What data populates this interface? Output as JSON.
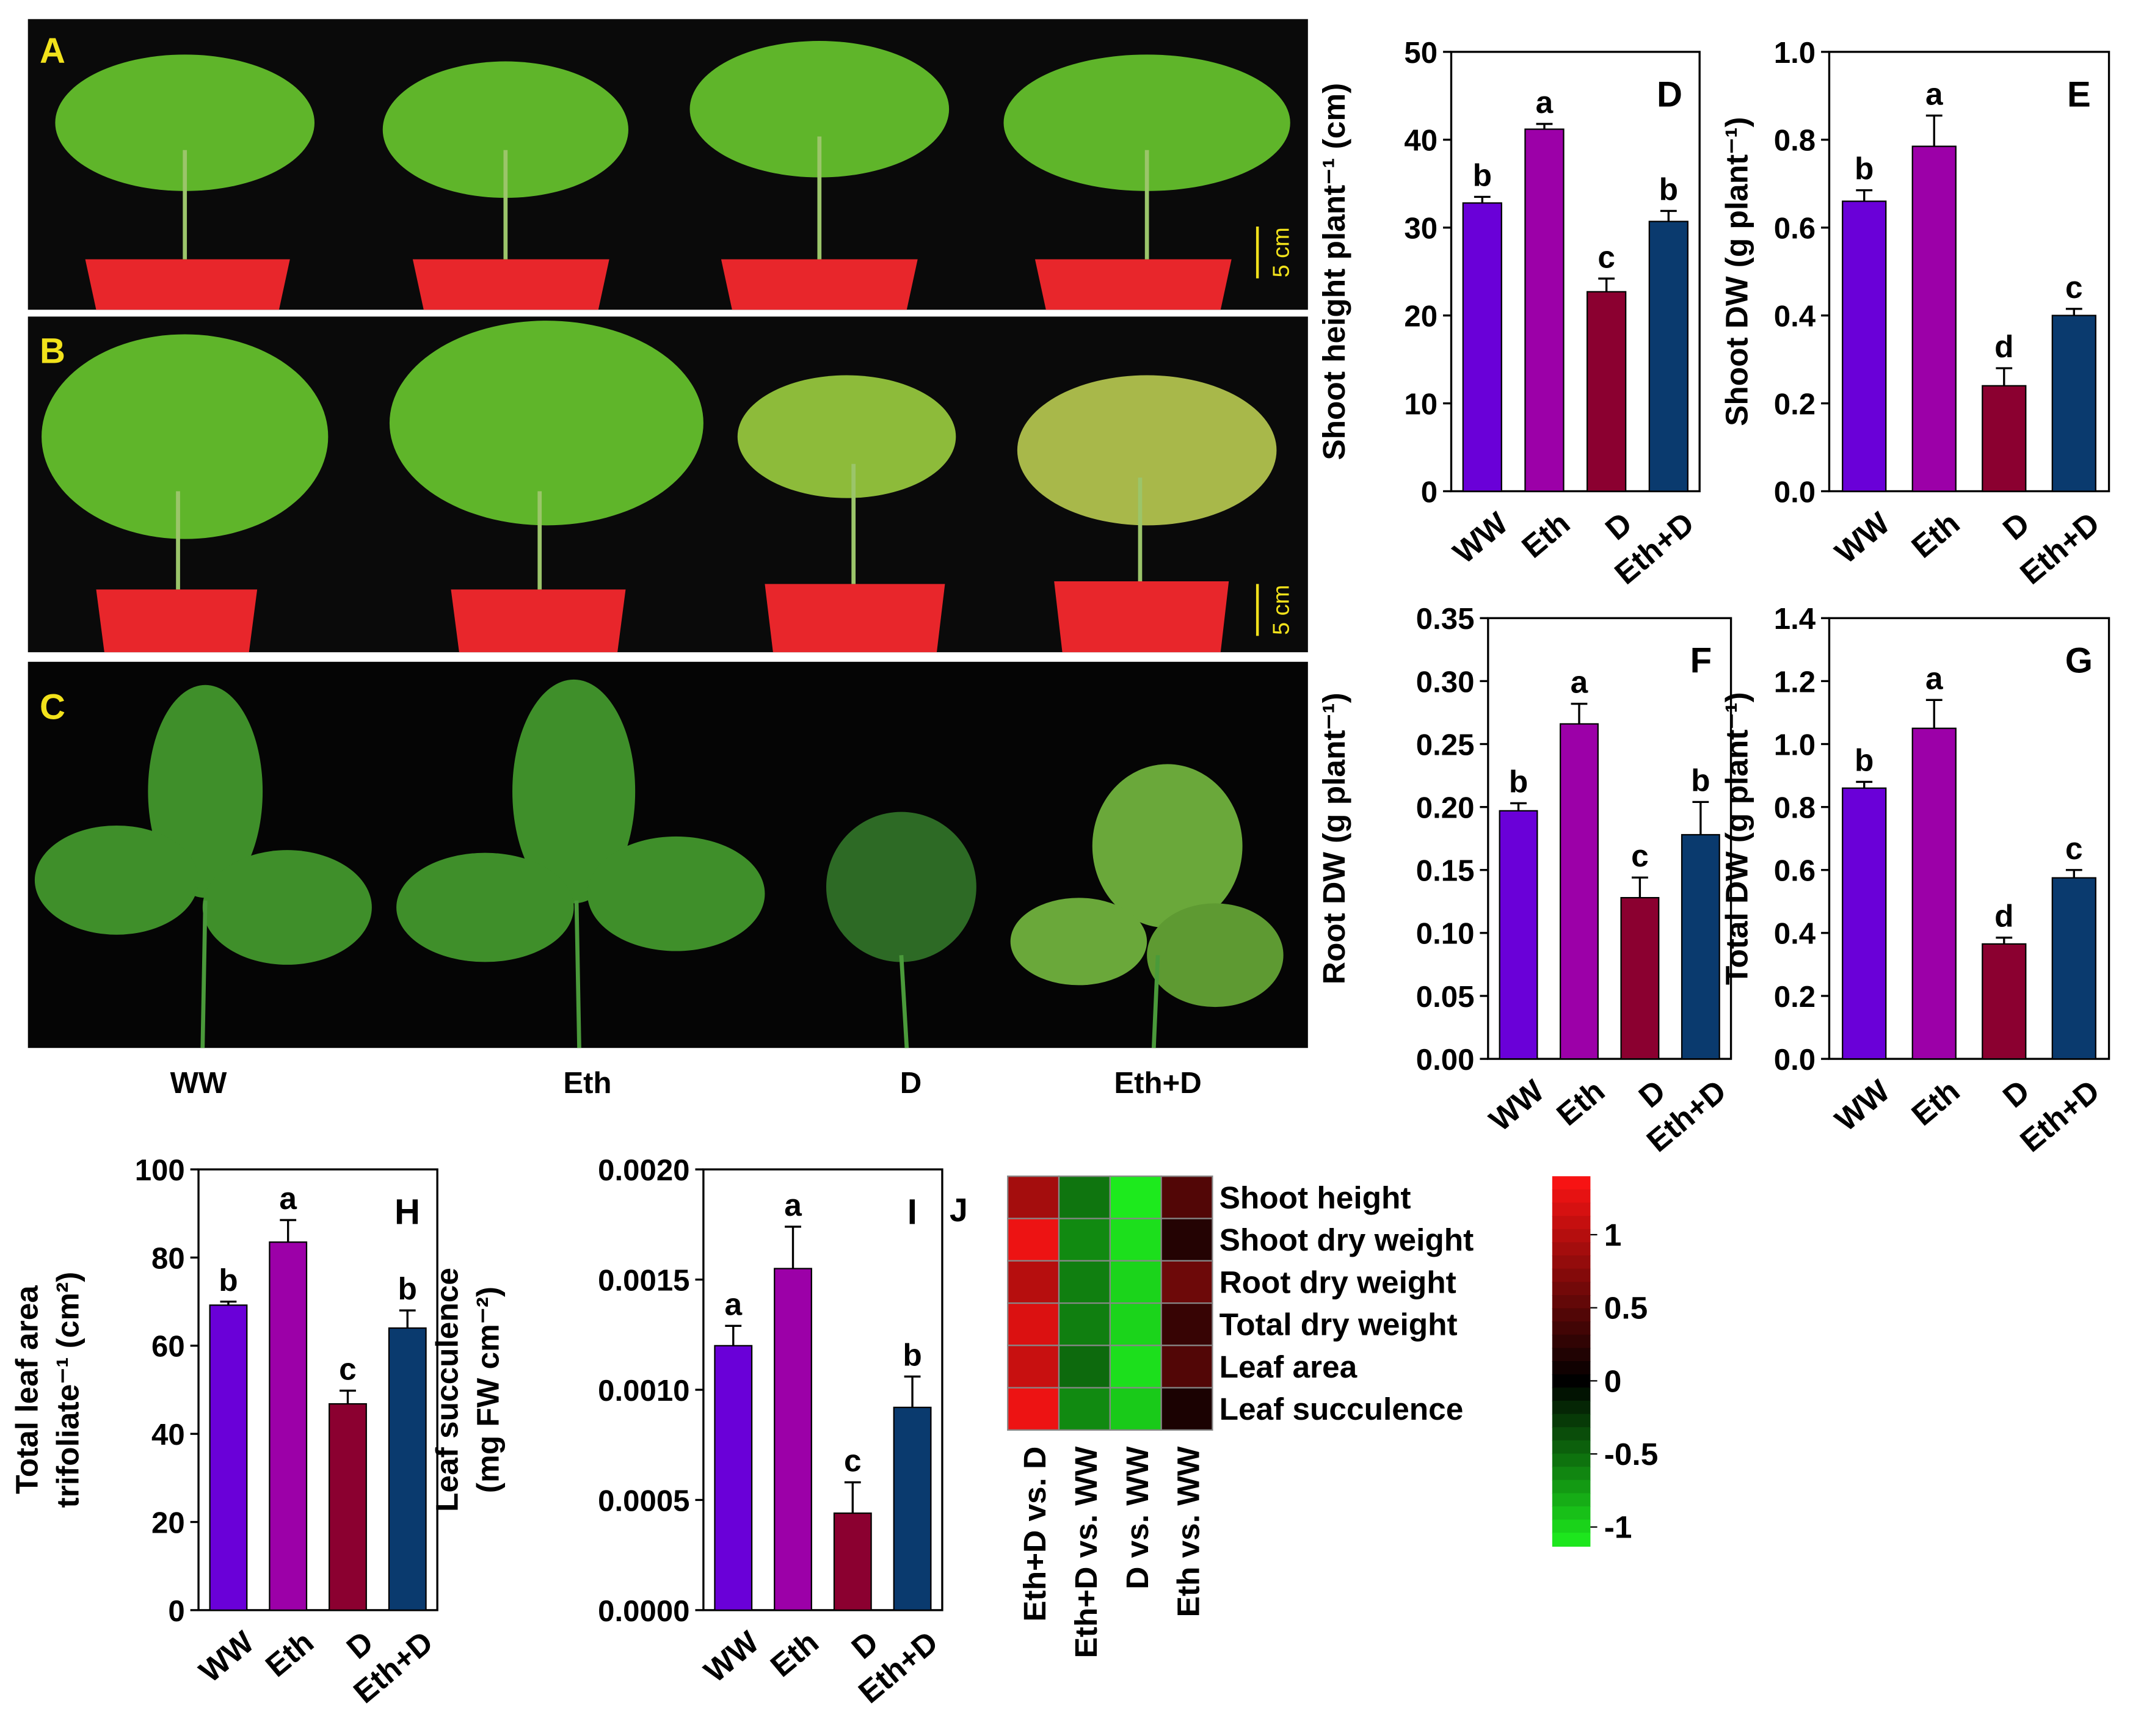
{
  "photos": {
    "panels": [
      {
        "label": "A",
        "scale": "5 cm"
      },
      {
        "label": "B",
        "scale": "5 cm"
      },
      {
        "label": "C"
      }
    ],
    "captions": [
      "WW",
      "Eth",
      "D",
      "Eth+D"
    ]
  },
  "chart_data": [
    {
      "type": "bar",
      "panel": "D",
      "ylabel": [
        "Shoot height plant⁻¹ (cm)"
      ],
      "categories": [
        "WW",
        "Eth",
        "D",
        "Eth+D"
      ],
      "values": [
        32.8,
        41.2,
        22.7,
        30.7
      ],
      "errors": [
        0.7,
        0.6,
        1.5,
        1.2
      ],
      "letters": [
        "b",
        "a",
        "c",
        "b"
      ],
      "colors": [
        "#6a00d8",
        "#9c00a8",
        "#8b0030",
        "#0a3a6e"
      ],
      "ylim": [
        0,
        50
      ],
      "yticks": [
        0,
        10,
        20,
        30,
        40,
        50
      ]
    },
    {
      "type": "bar",
      "panel": "E",
      "ylabel": [
        "Shoot DW (g plant⁻¹)"
      ],
      "categories": [
        "WW",
        "Eth",
        "D",
        "Eth+D"
      ],
      "values": [
        0.66,
        0.785,
        0.24,
        0.4
      ],
      "errors": [
        0.025,
        0.07,
        0.04,
        0.015
      ],
      "letters": [
        "b",
        "a",
        "d",
        "c"
      ],
      "colors": [
        "#6a00d8",
        "#9c00a8",
        "#8b0030",
        "#0a3a6e"
      ],
      "ylim": [
        0,
        1
      ],
      "yticks": [
        {
          "value": 0,
          "label": "0.0"
        },
        0.2,
        0.4,
        0.6,
        0.8,
        {
          "value": 1,
          "label": "1.0"
        }
      ]
    },
    {
      "type": "bar",
      "panel": "F",
      "ylabel": [
        "Root DW (g plant⁻¹)"
      ],
      "categories": [
        "WW",
        "Eth",
        "D",
        "Eth+D"
      ],
      "values": [
        0.197,
        0.266,
        0.128,
        0.178
      ],
      "errors": [
        0.006,
        0.016,
        0.016,
        0.026
      ],
      "letters": [
        "b",
        "a",
        "c",
        "b"
      ],
      "colors": [
        "#6a00d8",
        "#9c00a8",
        "#8b0030",
        "#0a3a6e"
      ],
      "ylim": [
        0,
        0.35
      ],
      "yticks": [
        {
          "value": 0,
          "label": "0.00"
        },
        0.05,
        {
          "value": 0.1,
          "label": "0.10"
        },
        0.15,
        {
          "value": 0.2,
          "label": "0.20"
        },
        0.25,
        {
          "value": 0.3,
          "label": "0.30"
        },
        0.35
      ]
    },
    {
      "type": "bar",
      "panel": "G",
      "ylabel": [
        "Total DW (g plant⁻¹)"
      ],
      "categories": [
        "WW",
        "Eth",
        "D",
        "Eth+D"
      ],
      "values": [
        0.86,
        1.05,
        0.365,
        0.575
      ],
      "errors": [
        0.02,
        0.09,
        0.02,
        0.025
      ],
      "letters": [
        "b",
        "a",
        "d",
        "c"
      ],
      "colors": [
        "#6a00d8",
        "#9c00a8",
        "#8b0030",
        "#0a3a6e"
      ],
      "ylim": [
        0,
        1.4
      ],
      "yticks": [
        {
          "value": 0,
          "label": "0.0"
        },
        0.2,
        0.4,
        0.6,
        0.8,
        {
          "value": 1,
          "label": "1.0"
        },
        1.2,
        1.4
      ]
    },
    {
      "type": "bar",
      "panel": "H",
      "ylabel": [
        "Total leaf area",
        "trifoliate⁻¹ (cm²)"
      ],
      "categories": [
        "WW",
        "Eth",
        "D",
        "Eth+D"
      ],
      "values": [
        69.2,
        83.5,
        46.8,
        64.0
      ],
      "errors": [
        0.8,
        5,
        3,
        4
      ],
      "letters": [
        "b",
        "a",
        "c",
        "b"
      ],
      "colors": [
        "#6a00d8",
        "#9c00a8",
        "#8b0030",
        "#0a3a6e"
      ],
      "ylim": [
        0,
        100
      ],
      "yticks": [
        0,
        20,
        40,
        60,
        80,
        100
      ]
    },
    {
      "type": "bar",
      "panel": "I",
      "ylabel": [
        "Leaf succulence",
        "(mg FW cm⁻²)"
      ],
      "categories": [
        "WW",
        "Eth",
        "D",
        "Eth+D"
      ],
      "values": [
        0.0012,
        0.00155,
        0.00044,
        0.00092
      ],
      "errors": [
        9e-05,
        0.00019,
        0.00014,
        0.00014
      ],
      "letters": [
        "a",
        "a",
        "c",
        "b"
      ],
      "colors": [
        "#6a00d8",
        "#9c00a8",
        "#8b0030",
        "#0a3a6e"
      ],
      "ylim": [
        0,
        0.002
      ],
      "yticks": [
        {
          "value": 0,
          "label": "0.0000"
        },
        {
          "value": 0.0005,
          "label": "0.0005"
        },
        {
          "value": 0.001,
          "label": "0.0010"
        },
        {
          "value": 0.0015,
          "label": "0.0015"
        },
        {
          "value": 0.002,
          "label": "0.0020"
        }
      ]
    },
    {
      "type": "heatmap",
      "panel": "J",
      "rows": [
        "Shoot height",
        "Shoot dry weight",
        "Root dry weight",
        "Total dry weight",
        "Leaf area",
        "Leaf succulence"
      ],
      "columns": [
        "Eth+D vs. D",
        "Eth+D vs. WW",
        "D vs. WW",
        "Eth vs. WW"
      ],
      "values": [
        [
          0.9,
          -0.55,
          -1.1,
          0.45
        ],
        [
          1.3,
          -0.65,
          -1.05,
          0.2
        ],
        [
          1.0,
          -0.6,
          -1.0,
          0.6
        ],
        [
          1.2,
          -0.6,
          -1.0,
          0.3
        ],
        [
          1.1,
          -0.5,
          -1.05,
          0.45
        ],
        [
          1.3,
          -0.65,
          -0.95,
          0.15
        ]
      ],
      "clim": [
        -1.13,
        1.4
      ],
      "cticks": [
        1,
        0.5,
        0,
        -0.5,
        -1
      ]
    }
  ]
}
